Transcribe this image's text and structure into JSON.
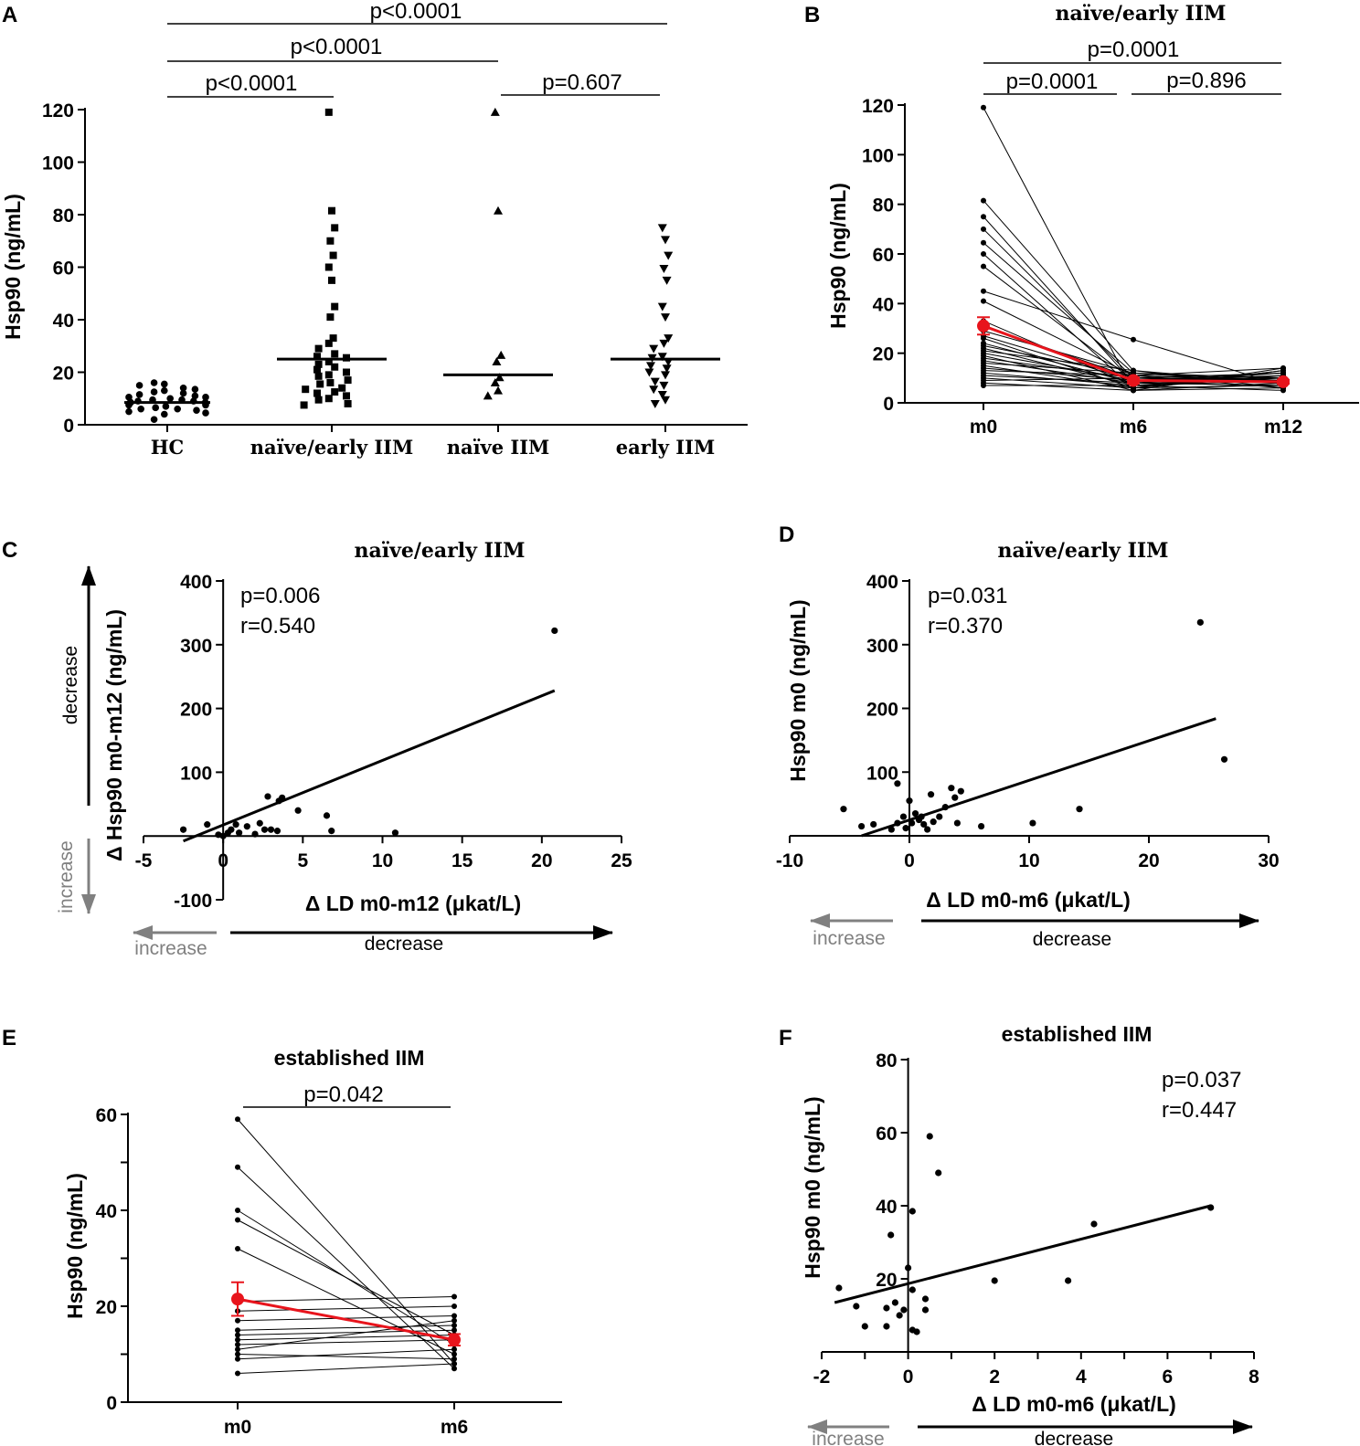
{
  "colors": {
    "ink": "#000000",
    "mean": "#e8141c",
    "grey_arrow": "#808080"
  },
  "chart_data": [
    {
      "panel": "A",
      "type": "scatter",
      "title": "",
      "ylabel": "Hsp90 (ng/mL)",
      "ylim": [
        0,
        120
      ],
      "yticks": [
        "0",
        "20",
        "40",
        "60",
        "80",
        "100",
        "120"
      ],
      "categories": [
        "HC",
        "naïve/early IIM",
        "naïve IIM",
        "early IIM"
      ],
      "medians": [
        8.5,
        25,
        19,
        25
      ],
      "series": [
        {
          "name": "HC",
          "marker": "circle",
          "values": [
            15.5,
            16,
            14,
            15,
            13.5,
            13,
            12.5,
            12,
            11.5,
            11,
            10.5,
            10.5,
            10,
            9.5,
            9.5,
            9,
            9,
            8.5,
            8.5,
            8,
            8,
            7.5,
            7.5,
            7,
            6.5,
            6,
            6,
            5.5,
            5,
            4.5,
            4,
            2
          ]
        },
        {
          "name": "naïve/early IIM",
          "marker": "square",
          "values": [
            119,
            81.5,
            75,
            70,
            64.5,
            60,
            55,
            45,
            41,
            33,
            31,
            29,
            27,
            26,
            25.5,
            24,
            23,
            22,
            21,
            20,
            19,
            18.5,
            17,
            16,
            15.5,
            14,
            13.5,
            12.5,
            12,
            11,
            10,
            9.5,
            8,
            7.5
          ]
        },
        {
          "name": "naïve IIM",
          "marker": "triangle-up",
          "values": [
            119,
            81.5,
            26.5,
            24,
            18,
            16,
            13,
            11
          ]
        },
        {
          "name": "early IIM",
          "marker": "triangle-down",
          "values": [
            75,
            70.5,
            64.5,
            59.5,
            55,
            45,
            41,
            33,
            31,
            29,
            26,
            25.5,
            24,
            22.5,
            21.5,
            20,
            19,
            16.5,
            15,
            13.5,
            11.5,
            9.5,
            8
          ]
        }
      ],
      "comparisons": [
        {
          "from": "HC",
          "to": "early IIM",
          "label": "p<0.0001"
        },
        {
          "from": "HC",
          "to": "naïve IIM",
          "label": "p<0.0001"
        },
        {
          "from": "HC",
          "to": "naïve/early IIM",
          "label": "p<0.0001"
        },
        {
          "from": "naïve IIM",
          "to": "early IIM",
          "label": "p=0.607"
        }
      ]
    },
    {
      "panel": "B",
      "type": "line",
      "title": "naïve/early IIM",
      "ylabel": "Hsp90 (ng/mL)",
      "ylim": [
        0,
        120
      ],
      "yticks": [
        "0",
        "20",
        "40",
        "60",
        "80",
        "100",
        "120"
      ],
      "categories": [
        "m0",
        "m6",
        "m12"
      ],
      "subjects": [
        [
          119,
          5,
          14
        ],
        [
          81.5,
          13,
          8
        ],
        [
          75,
          8,
          12
        ],
        [
          70,
          10,
          9
        ],
        [
          64.5,
          12,
          10
        ],
        [
          60,
          6,
          13
        ],
        [
          55,
          9,
          11
        ],
        [
          45,
          25.5,
          7
        ],
        [
          41,
          11,
          14
        ],
        [
          33,
          7,
          9
        ],
        [
          31,
          10,
          12
        ],
        [
          29,
          12,
          8
        ],
        [
          27,
          9,
          10
        ],
        [
          26,
          6,
          13
        ],
        [
          24,
          8,
          7
        ],
        [
          23,
          11,
          9
        ],
        [
          22,
          7,
          11
        ],
        [
          21,
          13,
          6
        ],
        [
          20,
          9,
          12
        ],
        [
          19,
          5,
          8
        ],
        [
          18,
          10,
          10
        ],
        [
          17,
          8,
          7
        ],
        [
          16,
          12,
          9
        ],
        [
          15,
          6,
          11
        ],
        [
          14,
          9,
          8
        ],
        [
          13,
          11,
          6
        ],
        [
          12,
          7,
          10
        ],
        [
          11,
          8,
          9
        ],
        [
          10,
          6,
          7
        ],
        [
          9,
          10,
          8
        ],
        [
          8,
          5,
          6
        ],
        [
          7,
          7,
          5
        ]
      ],
      "mean": {
        "values": [
          31,
          9,
          8.5
        ],
        "sem": [
          3.5,
          1.2,
          0.8
        ]
      },
      "comparisons": [
        {
          "from": "m0",
          "to": "m12",
          "label": "p=0.0001"
        },
        {
          "from": "m0",
          "to": "m6",
          "label": "p=0.0001"
        },
        {
          "from": "m6",
          "to": "m12",
          "label": "p=0.896"
        }
      ]
    },
    {
      "panel": "C",
      "type": "scatter",
      "title": "naïve/early IIM",
      "xlabel": "Δ LD m0-m12 (μkat/L)",
      "ylabel": "Δ Hsp90 m0-m12 (ng/mL)",
      "xlim": [
        -5,
        25
      ],
      "ylim": [
        -100,
        400
      ],
      "xticks": [
        "-5",
        "0",
        "5",
        "10",
        "15",
        "20",
        "25"
      ],
      "yticks": [
        "-100",
        "100",
        "200",
        "300",
        "400"
      ],
      "points": [
        [
          -2.5,
          10
        ],
        [
          -1,
          18
        ],
        [
          -0.3,
          2
        ],
        [
          0,
          0
        ],
        [
          0.3,
          5
        ],
        [
          0.5,
          10
        ],
        [
          0.8,
          18
        ],
        [
          1,
          5
        ],
        [
          1.5,
          15
        ],
        [
          2,
          3
        ],
        [
          2.3,
          20
        ],
        [
          2.6,
          10
        ],
        [
          2.8,
          62
        ],
        [
          3,
          10
        ],
        [
          3.5,
          55
        ],
        [
          3.7,
          60
        ],
        [
          3.4,
          8
        ],
        [
          4.7,
          40
        ],
        [
          6.5,
          32
        ],
        [
          6.8,
          8
        ],
        [
          10.8,
          5
        ],
        [
          20.8,
          322
        ]
      ],
      "fit": {
        "x": [
          -2.5,
          20.8
        ],
        "y": [
          -8,
          228
        ]
      },
      "stats": {
        "p": "p=0.006",
        "r": "r=0.540"
      },
      "direction_labels": {
        "x_increase": "increase",
        "x_decrease": "decrease",
        "y_increase": "increase",
        "y_decrease": "decrease"
      }
    },
    {
      "panel": "D",
      "type": "scatter",
      "title": "naïve/early IIM",
      "xlabel": "Δ LD m0-m6 (μkat/L)",
      "ylabel": "Hsp90 m0 (ng/mL)",
      "xlim": [
        -10,
        30
      ],
      "ylim": [
        0,
        400
      ],
      "xticks": [
        "-10",
        "0",
        "10",
        "20",
        "30"
      ],
      "yticks": [
        "100",
        "200",
        "300",
        "400"
      ],
      "points": [
        [
          -5.5,
          42
        ],
        [
          -4,
          15
        ],
        [
          -3,
          18
        ],
        [
          -1.5,
          10
        ],
        [
          -1,
          82
        ],
        [
          -1,
          20
        ],
        [
          -0.5,
          30
        ],
        [
          -0.3,
          12
        ],
        [
          0,
          55
        ],
        [
          0.2,
          20
        ],
        [
          0.5,
          35
        ],
        [
          0.8,
          25
        ],
        [
          1,
          30
        ],
        [
          1.2,
          18
        ],
        [
          1.5,
          10
        ],
        [
          1.8,
          65
        ],
        [
          2,
          22
        ],
        [
          2.5,
          30
        ],
        [
          3,
          45
        ],
        [
          3.5,
          75
        ],
        [
          3.8,
          60
        ],
        [
          4,
          20
        ],
        [
          4.3,
          70
        ],
        [
          6,
          15
        ],
        [
          10.3,
          20
        ],
        [
          14.2,
          42
        ],
        [
          24.3,
          335
        ],
        [
          26.3,
          120
        ]
      ],
      "fit": {
        "x": [
          -4,
          25.6
        ],
        "y": [
          0,
          184
        ]
      },
      "stats": {
        "p": "p=0.031",
        "r": "r=0.370"
      },
      "direction_labels": {
        "x_increase": "increase",
        "x_decrease": "decrease"
      }
    },
    {
      "panel": "E",
      "type": "line",
      "title": "established IIM",
      "ylabel": "Hsp90 (ng/mL)",
      "ylim": [
        0,
        60
      ],
      "yticks": [
        "0",
        "20",
        "40",
        "60"
      ],
      "categories": [
        "m0",
        "m6"
      ],
      "subjects": [
        [
          59,
          8
        ],
        [
          49,
          7
        ],
        [
          40,
          12
        ],
        [
          38,
          14
        ],
        [
          32,
          10
        ],
        [
          21,
          22
        ],
        [
          19,
          20
        ],
        [
          17,
          18
        ],
        [
          15,
          16
        ],
        [
          14,
          15
        ],
        [
          13,
          14
        ],
        [
          12,
          13
        ],
        [
          11,
          17
        ],
        [
          10,
          9
        ],
        [
          9,
          11
        ],
        [
          6,
          8
        ]
      ],
      "mean": {
        "values": [
          21.5,
          13
        ],
        "sem": [
          3.5,
          1.2
        ]
      },
      "comparisons": [
        {
          "from": "m0",
          "to": "m6",
          "label": "p=0.042"
        }
      ]
    },
    {
      "panel": "F",
      "type": "scatter",
      "title": "established IIM",
      "xlabel": "Δ LD m0-m6 (μkat/L)",
      "ylabel": "Hsp90 m0 (ng/mL)",
      "xlim": [
        -2,
        8
      ],
      "ylim": [
        0,
        80
      ],
      "xticks": [
        "-2",
        "0",
        "2",
        "4",
        "6",
        "8"
      ],
      "yticks": [
        "20",
        "40",
        "60",
        "80"
      ],
      "points": [
        [
          -1.6,
          17.5
        ],
        [
          -1.2,
          12.5
        ],
        [
          -1,
          7
        ],
        [
          -0.5,
          12
        ],
        [
          -0.5,
          7
        ],
        [
          -0.4,
          32
        ],
        [
          -0.3,
          13.5
        ],
        [
          -0.2,
          10
        ],
        [
          -0.1,
          11.5
        ],
        [
          0,
          23
        ],
        [
          0.1,
          17
        ],
        [
          0.1,
          38.5
        ],
        [
          0.1,
          6
        ],
        [
          0.2,
          5.5
        ],
        [
          0.4,
          14.5
        ],
        [
          0.4,
          11.5
        ],
        [
          0.5,
          59
        ],
        [
          0.7,
          49
        ],
        [
          2,
          19.5
        ],
        [
          3.7,
          19.5
        ],
        [
          4.3,
          35
        ],
        [
          7,
          39.5
        ]
      ],
      "fit": {
        "x": [
          -1.7,
          7
        ],
        "y": [
          13.5,
          40
        ]
      },
      "stats": {
        "p": "p=0.037",
        "r": "r=0.447"
      },
      "direction_labels": {
        "x_increase": "increase",
        "x_decrease": "decrease"
      }
    }
  ]
}
